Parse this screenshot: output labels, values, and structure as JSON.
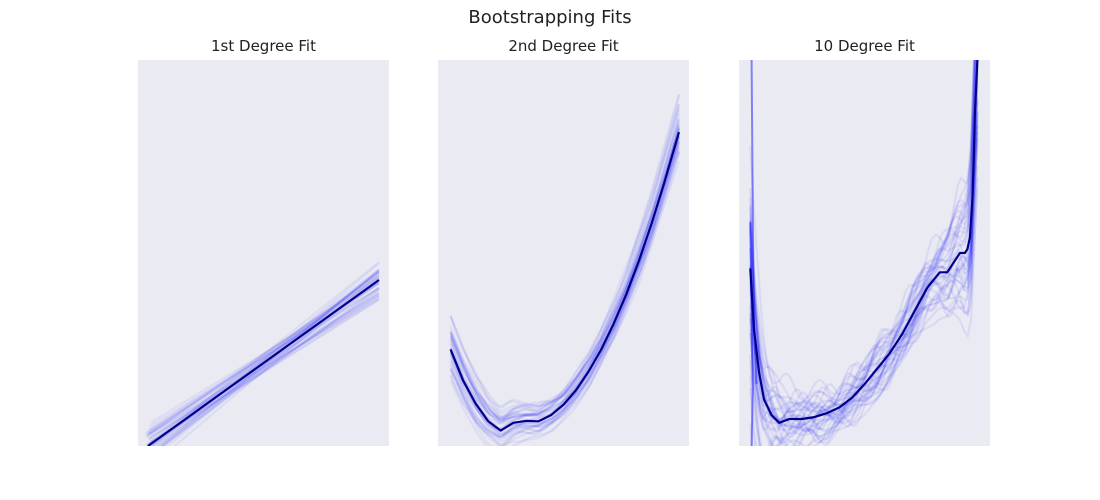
{
  "figure": {
    "title": "Bootstrapping Fits"
  },
  "colors": {
    "background": "#eaeaf2",
    "fit_line": "#00008b",
    "bootstrap_lines": "#0000ff"
  },
  "chart_data": [
    {
      "type": "line",
      "title": "1st Degree Fit",
      "xlabel": "",
      "ylabel": "",
      "grid": false,
      "xlim": [
        0,
        1
      ],
      "ylim": [
        0,
        1
      ],
      "series": [
        {
          "role": "mean-fit",
          "x": [
            0.04,
            0.96
          ],
          "y": [
            0.0,
            0.43
          ]
        }
      ],
      "bootstrap": {
        "n": 40,
        "slope_spread": 0.08,
        "offset_spread": 0.025,
        "alpha": 0.06
      }
    },
    {
      "type": "line",
      "title": "2nd Degree Fit",
      "xlabel": "",
      "ylabel": "",
      "grid": false,
      "xlim": [
        0,
        1
      ],
      "ylim": [
        0,
        1
      ],
      "series": [
        {
          "role": "mean-fit",
          "x": [
            0.05,
            0.1,
            0.15,
            0.2,
            0.25,
            0.3,
            0.35,
            0.4,
            0.45,
            0.5,
            0.55,
            0.6,
            0.65,
            0.7,
            0.75,
            0.8,
            0.85,
            0.9,
            0.96
          ],
          "y": [
            0.25,
            0.17,
            0.11,
            0.064,
            0.04,
            0.06,
            0.065,
            0.064,
            0.08,
            0.107,
            0.145,
            0.193,
            0.25,
            0.317,
            0.393,
            0.479,
            0.574,
            0.679,
            0.813
          ]
        }
      ],
      "bootstrap": {
        "n": 40,
        "curve_spread": 0.04,
        "alpha": 0.06
      }
    },
    {
      "type": "line",
      "title": "10 Degree Fit",
      "xlabel": "",
      "ylabel": "",
      "grid": false,
      "xlim": [
        0,
        1
      ],
      "ylim": [
        0,
        1
      ],
      "series": [
        {
          "role": "mean-fit",
          "x": [
            0.045,
            0.06,
            0.08,
            0.1,
            0.13,
            0.16,
            0.2,
            0.25,
            0.3,
            0.35,
            0.4,
            0.45,
            0.5,
            0.55,
            0.6,
            0.65,
            0.7,
            0.75,
            0.8,
            0.83,
            0.86,
            0.88,
            0.9,
            0.91,
            0.92,
            0.93,
            0.935,
            0.94,
            0.95
          ],
          "y": [
            0.46,
            0.3,
            0.19,
            0.12,
            0.08,
            0.06,
            0.07,
            0.07,
            0.075,
            0.085,
            0.1,
            0.125,
            0.16,
            0.2,
            0.24,
            0.29,
            0.35,
            0.41,
            0.45,
            0.45,
            0.48,
            0.5,
            0.5,
            0.51,
            0.54,
            0.64,
            0.74,
            0.86,
            1.0
          ]
        }
      ],
      "bootstrap": {
        "n": 40,
        "curve_spread": 0.06,
        "alpha": 0.07
      }
    }
  ]
}
